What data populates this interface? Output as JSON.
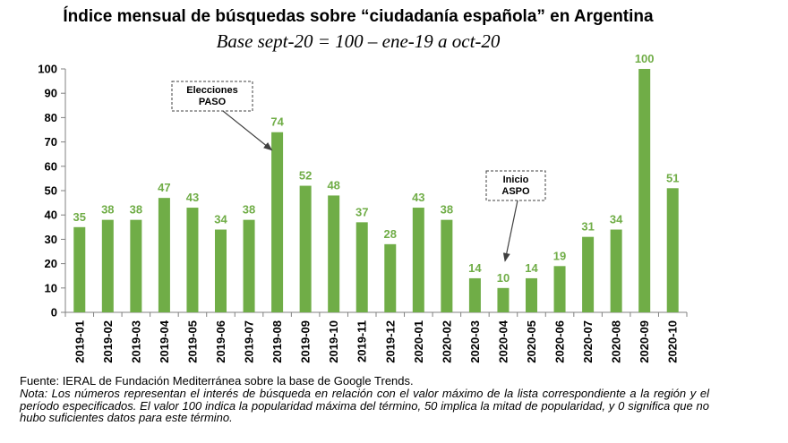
{
  "chart_data": {
    "type": "bar",
    "title": "Índice mensual de búsquedas sobre “ciudadanía española” en Argentina",
    "subtitle": "Base sept-20 = 100 – ene-19 a oct-20",
    "categories": [
      "2019-01",
      "2019-02",
      "2019-03",
      "2019-04",
      "2019-05",
      "2019-06",
      "2019-07",
      "2019-08",
      "2019-09",
      "2019-10",
      "2019-11",
      "2019-12",
      "2020-01",
      "2020-02",
      "2020-03",
      "2020-04",
      "2020-05",
      "2020-06",
      "2020-07",
      "2020-08",
      "2020-09",
      "2020-10"
    ],
    "values": [
      35,
      38,
      38,
      47,
      43,
      34,
      38,
      74,
      52,
      48,
      37,
      28,
      43,
      38,
      14,
      10,
      14,
      19,
      31,
      34,
      100,
      51
    ],
    "ylim": [
      0,
      100
    ],
    "yticks": [
      0,
      10,
      20,
      30,
      40,
      50,
      60,
      70,
      80,
      90,
      100
    ],
    "xlabel": "",
    "ylabel": "",
    "bar_color": "#70AD47",
    "label_color": "#70AD47",
    "annotations": [
      {
        "lines": [
          "Elecciones",
          "PASO"
        ],
        "target": "2019-08"
      },
      {
        "lines": [
          "Inicio",
          "ASPO"
        ],
        "target": "2020-04"
      }
    ]
  },
  "source": "Fuente: IERAL de Fundación Mediterránea sobre la base de Google Trends.",
  "note": "Nota: Los números representan el interés de búsqueda en relación con el valor máximo de la lista correspondiente a la región y el período especificados. El valor 100 indica la popularidad máxima del término, 50 implica la mitad de popularidad, y 0 significa que no hubo suficientes datos para este término."
}
